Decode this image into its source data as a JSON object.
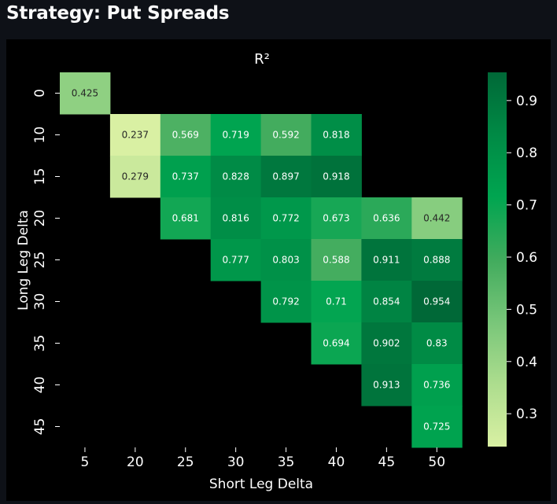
{
  "page": {
    "title": "Strategy: Put Spreads"
  },
  "chart_data": {
    "type": "heatmap",
    "title": "R²",
    "xlabel": "Short Leg Delta",
    "ylabel": "Long Leg Delta",
    "x_categories": [
      "5",
      "20",
      "25",
      "30",
      "35",
      "40",
      "45",
      "50"
    ],
    "y_categories": [
      "0",
      "10",
      "15",
      "20",
      "25",
      "30",
      "35",
      "40",
      "45"
    ],
    "values": [
      [
        0.425,
        null,
        null,
        null,
        null,
        null,
        null,
        null
      ],
      [
        null,
        0.237,
        0.569,
        0.719,
        0.592,
        0.818,
        null,
        null
      ],
      [
        null,
        0.279,
        0.737,
        0.828,
        0.897,
        0.918,
        null,
        null
      ],
      [
        null,
        null,
        0.681,
        0.816,
        0.772,
        0.673,
        0.636,
        0.442
      ],
      [
        null,
        null,
        null,
        0.777,
        0.803,
        0.588,
        0.911,
        0.888
      ],
      [
        null,
        null,
        null,
        null,
        0.792,
        0.71,
        0.854,
        0.954
      ],
      [
        null,
        null,
        null,
        null,
        null,
        0.694,
        0.902,
        0.83
      ],
      [
        null,
        null,
        null,
        null,
        null,
        null,
        0.913,
        0.736
      ],
      [
        null,
        null,
        null,
        null,
        null,
        null,
        null,
        0.725
      ]
    ],
    "colorbar": {
      "min": 0.237,
      "max": 0.954,
      "ticks": [
        0.3,
        0.4,
        0.5,
        0.6,
        0.7,
        0.8,
        0.9
      ],
      "tick_labels": [
        "0.3",
        "0.4",
        "0.5",
        "0.6",
        "0.7",
        "0.8",
        "0.9"
      ],
      "colors": [
        "#d9f0a3",
        "#addd8e",
        "#78c679",
        "#41ab5d",
        "#00a550",
        "#008a45",
        "#006837"
      ]
    },
    "grid": false,
    "legend": "colorbar-right"
  }
}
